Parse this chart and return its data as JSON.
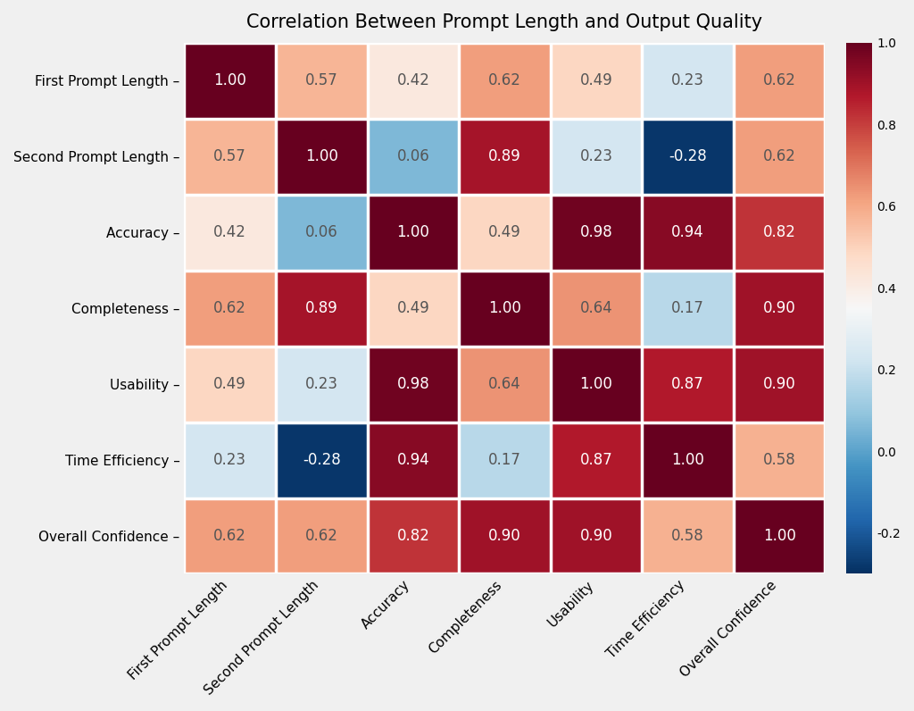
{
  "title": "Correlation Between Prompt Length and Output Quality",
  "labels": [
    "First Prompt Length",
    "Second Prompt Length",
    "Accuracy",
    "Completeness",
    "Usability",
    "Time Efficiency",
    "Overall Confidence"
  ],
  "matrix": [
    [
      1.0,
      0.57,
      0.42,
      0.62,
      0.49,
      0.23,
      0.62
    ],
    [
      0.57,
      1.0,
      0.06,
      0.89,
      0.23,
      -0.28,
      0.62
    ],
    [
      0.42,
      0.06,
      1.0,
      0.49,
      0.98,
      0.94,
      0.82
    ],
    [
      0.62,
      0.89,
      0.49,
      1.0,
      0.64,
      0.17,
      0.9
    ],
    [
      0.49,
      0.23,
      0.98,
      0.64,
      1.0,
      0.87,
      0.9
    ],
    [
      0.23,
      -0.28,
      0.94,
      0.17,
      0.87,
      1.0,
      0.58
    ],
    [
      0.62,
      0.62,
      0.82,
      0.9,
      0.9,
      0.58,
      1.0
    ]
  ],
  "vmin": -0.3,
  "vmax": 1.0,
  "cmap": "RdBu_r",
  "title_fontsize": 15,
  "label_fontsize": 11,
  "annot_fontsize": 12,
  "colorbar_ticks": [
    1.0,
    0.8,
    0.6,
    0.4,
    0.2,
    0.0,
    -0.2
  ],
  "colorbar_tick_labels": [
    "1.0",
    "0.8",
    "0.6",
    "0.4",
    "0.2",
    "0.0",
    "-0.2"
  ],
  "white_text_color": "white",
  "dark_text_color": "#555555",
  "background_color": "#f0f0f0",
  "cell_linewidth": 2.5
}
